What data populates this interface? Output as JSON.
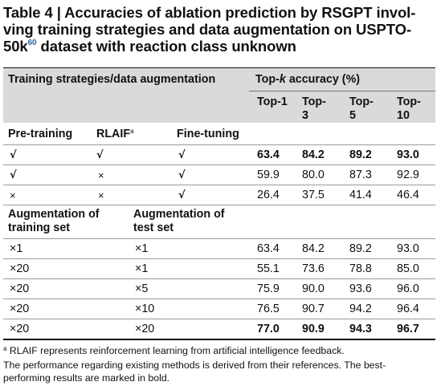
{
  "title": {
    "prefix": "Table 4 | Accuracies of ablation prediction by RSGPT involving training strategies and data augmentation on USPTO-50k",
    "line1": "Table 4 | Accuracies of ablation prediction by RSGPT invol-",
    "line2": "ving training strategies and data augmentation on USPTO-",
    "line3_a": "50k",
    "ref": "60",
    "line3_b": " dataset with reaction class unknown"
  },
  "header": {
    "group_left": "Training strategies/data augmentation",
    "group_right": "Top-k accuracy (%)",
    "group_right_a": "Top-",
    "group_right_k": "k",
    "group_right_b": " accuracy (%)",
    "top1": "Top-1",
    "top3_a": "Top-",
    "top3_b": "3",
    "top5_a": "Top-",
    "top5_b": "5",
    "top10_a": "Top-",
    "top10_b": "10"
  },
  "section1": {
    "col1": "Pre-training",
    "col2": "RLAIF",
    "col2_sup": "a",
    "col3": "Fine-tuning",
    "rows": [
      {
        "pre": "√",
        "rlaif": "√",
        "ft": "√",
        "t1": "63.4",
        "t3": "84.2",
        "t5": "89.2",
        "t10": "93.0",
        "bold": true
      },
      {
        "pre": "√",
        "rlaif": "×",
        "ft": "√",
        "t1": "59.9",
        "t3": "80.0",
        "t5": "87.3",
        "t10": "92.9",
        "bold": false
      },
      {
        "pre": "×",
        "rlaif": "×",
        "ft": "√",
        "t1": "26.4",
        "t3": "37.5",
        "t5": "41.4",
        "t10": "46.4",
        "bold": false
      }
    ]
  },
  "section2": {
    "col1_a": "Augmentation of",
    "col1_b": "training set",
    "col2_a": "Augmentation of",
    "col2_b": "test set",
    "rows": [
      {
        "train": "×1",
        "test": "×1",
        "t1": "63.4",
        "t3": "84.2",
        "t5": "89.2",
        "t10": "93.0"
      },
      {
        "train": "×20",
        "test": "×1",
        "t1": "55.1",
        "t3": "73.6",
        "t5": "78.8",
        "t10": "85.0"
      },
      {
        "train": "×20",
        "test": "×5",
        "t1": "75.9",
        "t3": "90.0",
        "t5": "93.6",
        "t10": "96.0"
      },
      {
        "train": "×20",
        "test": "×10",
        "t1": "76.5",
        "t3": "90.7",
        "t5": "94.2",
        "t10": "96.4"
      },
      {
        "train": "×20",
        "test": "×20",
        "t1": "77.0",
        "t3": "90.9",
        "t5": "94.3",
        "t10": "96.7"
      }
    ]
  },
  "footnotes": {
    "a_mark": "a",
    "a_text": " RLAIF represents reinforcement learning from artificial intelligence feedback.",
    "line2": "The performance regarding existing methods is derived from their references. The best-",
    "line3": "performing results are marked in bold."
  },
  "colors": {
    "header_bg": "#d9dadb",
    "ref_link": "#2b63b0",
    "rule": "#9a9a9a"
  }
}
